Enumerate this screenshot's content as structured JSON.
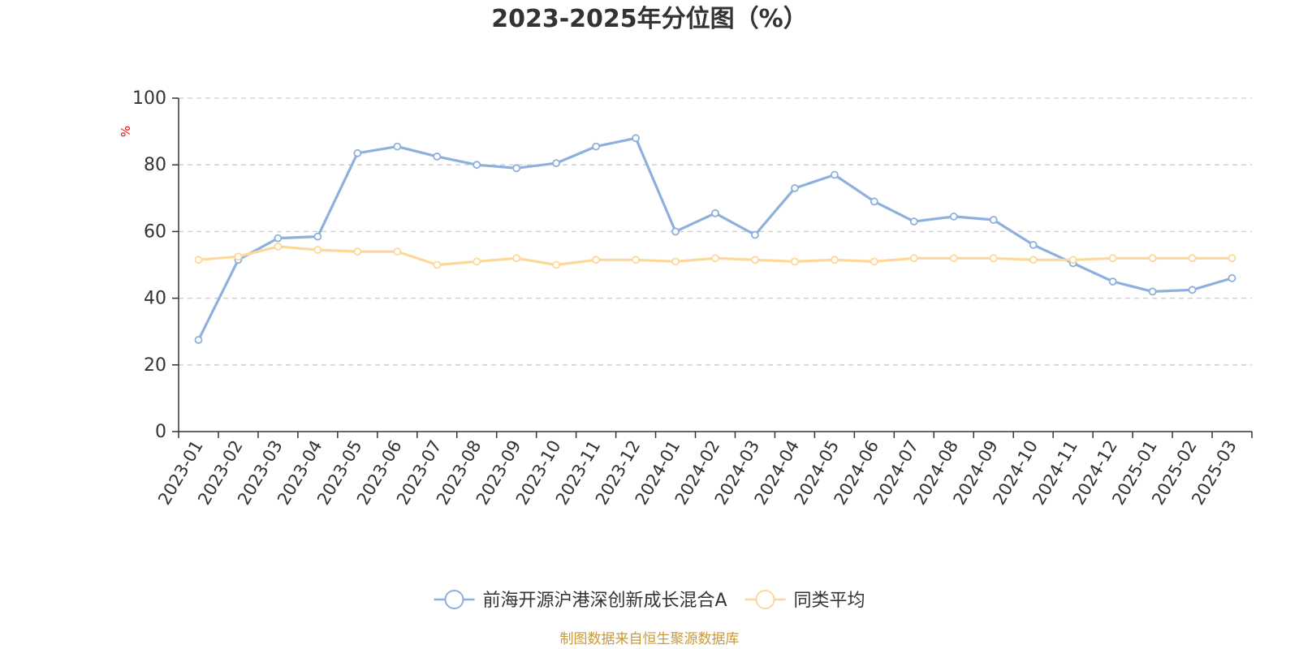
{
  "chart_data": {
    "type": "line",
    "title": "2023-2025年分位图（%）",
    "ylabel": "%",
    "xlabel": "",
    "ylim": [
      0,
      100
    ],
    "yticks": [
      0,
      20,
      40,
      60,
      80,
      100
    ],
    "grid": true,
    "legend_position": "bottom-center",
    "categories": [
      "2023-01",
      "2023-02",
      "2023-03",
      "2023-04",
      "2023-05",
      "2023-06",
      "2023-07",
      "2023-08",
      "2023-09",
      "2023-10",
      "2023-11",
      "2023-12",
      "2024-01",
      "2024-02",
      "2024-03",
      "2024-04",
      "2024-05",
      "2024-06",
      "2024-07",
      "2024-08",
      "2024-09",
      "2024-10",
      "2024-11",
      "2024-12",
      "2025-01",
      "2025-02",
      "2025-03"
    ],
    "series": [
      {
        "name": "前海开源沪港深创新成长混合A",
        "color": "#8eb0dc",
        "values": [
          27.5,
          51.5,
          58.0,
          58.5,
          83.5,
          85.5,
          82.5,
          80.0,
          79.0,
          80.5,
          85.5,
          88.0,
          60.0,
          65.5,
          59.0,
          73.0,
          77.0,
          69.0,
          63.0,
          64.5,
          63.5,
          56.0,
          50.5,
          45.0,
          42.0,
          42.5,
          46.0
        ]
      },
      {
        "name": "同类平均",
        "color": "#fdd89a",
        "values": [
          51.5,
          52.5,
          55.5,
          54.5,
          54.0,
          54.0,
          50.0,
          51.0,
          52.0,
          50.0,
          51.5,
          51.5,
          51.0,
          52.0,
          51.5,
          51.0,
          51.5,
          51.0,
          52.0,
          52.0,
          52.0,
          51.5,
          51.5,
          52.0,
          52.0,
          52.0,
          52.0
        ]
      }
    ],
    "source_note": "制图数据来自恒生聚源数据库"
  },
  "colors": {
    "axis": "#333333",
    "grid": "#cccccc",
    "unit_label": "#ff0000",
    "source_note": "#c79a3a"
  }
}
